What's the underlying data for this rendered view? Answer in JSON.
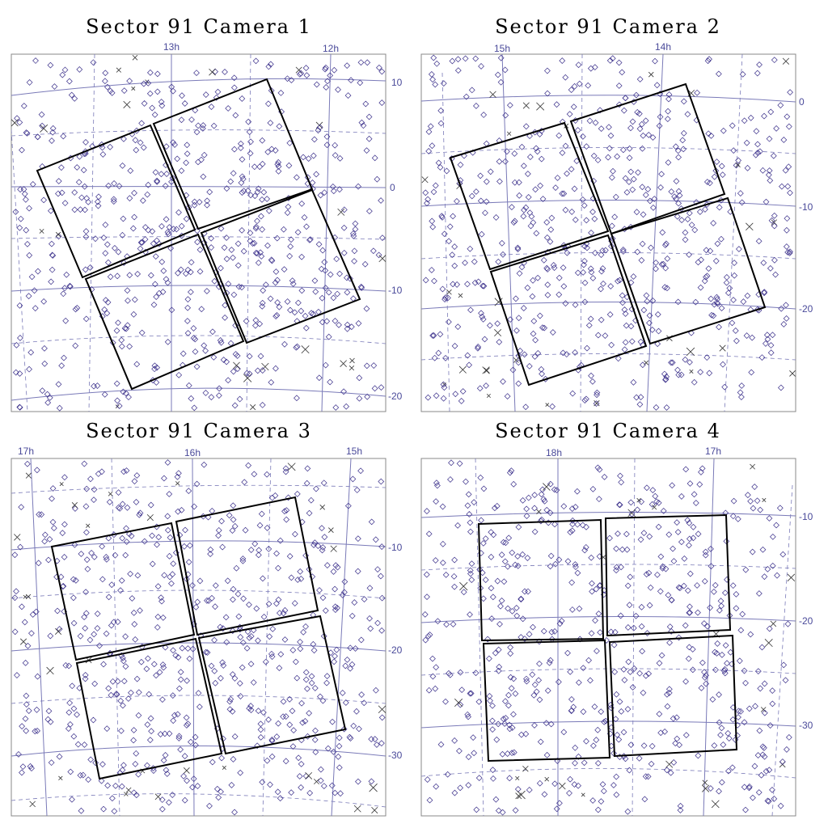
{
  "colors": {
    "grid": "#7a7ab8",
    "star": "#3a2f8a",
    "ccd": "#000000",
    "title": "#000000"
  },
  "panels": [
    {
      "title": "Sector 91 Camera 1",
      "ra_labels": [
        "13h",
        "12h"
      ],
      "dec_labels": [
        "10",
        "0",
        "-10",
        "-20"
      ],
      "ccd_grid": "2x2",
      "rotation_deg": -16,
      "seed": 11
    },
    {
      "title": "Sector 91 Camera 2",
      "ra_labels": [
        "15h",
        "14h"
      ],
      "dec_labels": [
        "0",
        "-10",
        "-20"
      ],
      "ccd_grid": "2x2",
      "rotation_deg": -13,
      "seed": 22
    },
    {
      "title": "Sector 91 Camera 3",
      "ra_labels": [
        "17h",
        "16h",
        "15h"
      ],
      "dec_labels": [
        "-10",
        "-20",
        "-30"
      ],
      "ccd_grid": "2x2",
      "rotation_deg": -8,
      "seed": 33
    },
    {
      "title": "Sector 91 Camera 4",
      "ra_labels": [
        "18h",
        "17h"
      ],
      "dec_labels": [
        "-10",
        "-20",
        "-30"
      ],
      "ccd_grid": "2x2",
      "rotation_deg": -3,
      "seed": 44
    }
  ]
}
